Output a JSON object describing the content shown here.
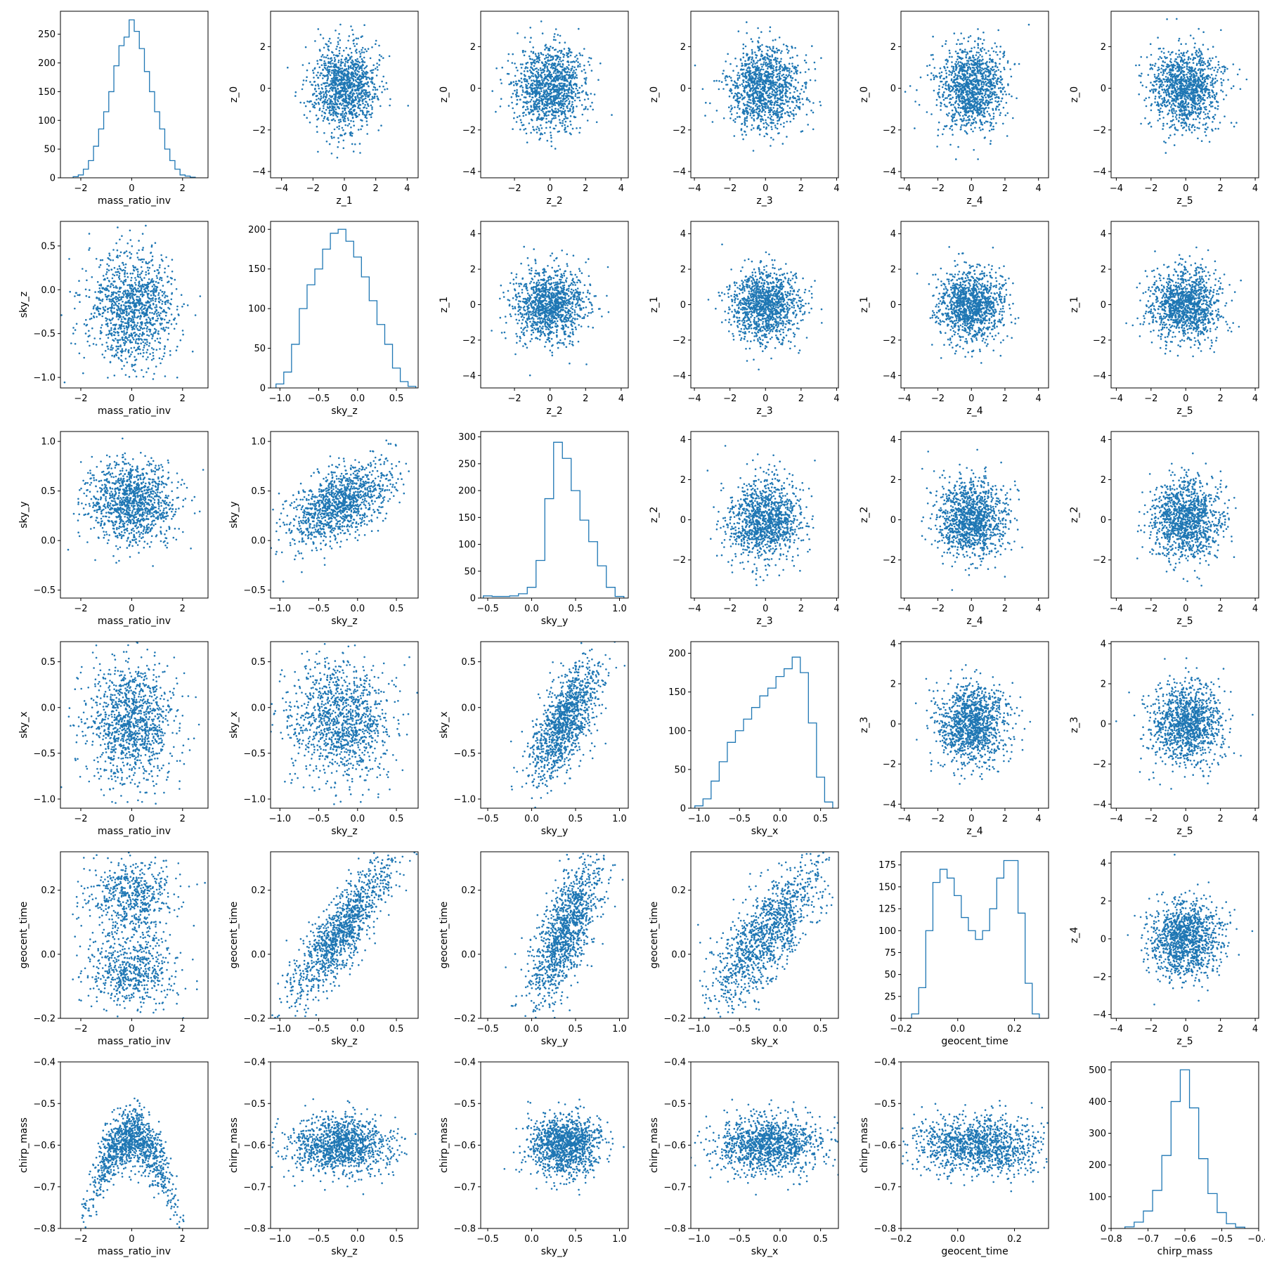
{
  "chart_data": {
    "type": "scatter",
    "marker_color": "#1f77b4",
    "histogram_color": "#1f77b4",
    "grid": false,
    "variables": [
      {
        "name": "mass_ratio_inv",
        "range": [
          -2.8,
          3.0
        ],
        "ticks": [
          -2,
          0,
          2
        ],
        "tick_labels": [
          "−2",
          "0",
          "2"
        ]
      },
      {
        "name": "sky_z",
        "range": [
          -1.12,
          0.78
        ],
        "ticks": [
          -1.0,
          -0.5,
          0.0,
          0.5
        ],
        "tick_labels": [
          "−1.0",
          "−0.5",
          "0.0",
          "0.5"
        ],
        "mean": -0.22,
        "sd": 0.33
      },
      {
        "name": "sky_y",
        "range": [
          -0.58,
          1.1
        ],
        "ticks": [
          -0.5,
          0.0,
          0.5,
          1.0
        ],
        "tick_labels": [
          "−0.5",
          "0.0",
          "0.5",
          "1.0"
        ],
        "mean": 0.38,
        "sd": 0.2
      },
      {
        "name": "sky_x",
        "range": [
          -1.1,
          0.72
        ],
        "ticks": [
          -1.0,
          -0.5,
          0.0,
          0.5
        ],
        "tick_labels": [
          "−1.0",
          "−0.5",
          "0.0",
          "0.5"
        ],
        "mean": -0.15,
        "sd": 0.33
      },
      {
        "name": "geocent_time",
        "range": [
          -0.2,
          0.32
        ],
        "ticks": [
          -0.2,
          0.0,
          0.2
        ],
        "tick_labels": [
          "−0.2",
          "0.0",
          "0.2"
        ],
        "mean": 0.07,
        "sd": 0.11
      },
      {
        "name": "chirp_mass",
        "range": [
          -0.8,
          -0.4
        ],
        "ticks": [
          -0.8,
          -0.7,
          -0.6,
          -0.5,
          -0.4
        ],
        "tick_labels": [
          "−0.8",
          "−0.7",
          "−0.6",
          "−0.5",
          "−0.4"
        ],
        "mean": -0.6,
        "sd": 0.035
      },
      {
        "name": "z_0",
        "range": [
          -4.3,
          3.7
        ],
        "ticks": [
          -4,
          -2,
          0,
          2
        ],
        "tick_labels": [
          "−4",
          "−2",
          "0",
          "2"
        ]
      },
      {
        "name": "z_1",
        "range": [
          -4.7,
          4.7
        ],
        "ticks": [
          -4,
          -2,
          0,
          2,
          4
        ],
        "tick_labels": [
          "−4",
          "−2",
          "0",
          "2",
          "4"
        ]
      },
      {
        "name": "z_2",
        "range": [
          -3.9,
          4.4
        ],
        "ticks": [
          -2,
          0,
          2,
          4
        ],
        "tick_labels": [
          "−2",
          "0",
          "2",
          "4"
        ]
      },
      {
        "name": "z_3",
        "range": [
          -4.2,
          4.1
        ],
        "ticks": [
          -4,
          -2,
          0,
          2,
          4
        ],
        "tick_labels": [
          "−4",
          "−2",
          "0",
          "2",
          "4"
        ]
      },
      {
        "name": "z_4",
        "range": [
          -4.2,
          4.6
        ],
        "ticks": [
          -4,
          -2,
          0,
          2,
          4
        ],
        "tick_labels": [
          "−4",
          "−2",
          "0",
          "2",
          "4"
        ]
      },
      {
        "name": "z_5",
        "range": [
          -4.3,
          4.2
        ],
        "ticks": [
          -4,
          -2,
          0,
          2,
          4
        ],
        "tick_labels": [
          "−4",
          "−2",
          "0",
          "2",
          "4"
        ]
      }
    ],
    "panels": [
      {
        "row": 0,
        "col": 0,
        "type": "histogram",
        "x": "mass_ratio_inv",
        "x_values": [
          -2.2,
          -2.0,
          -1.8,
          -1.6,
          -1.4,
          -1.2,
          -1.0,
          -0.8,
          -0.6,
          -0.4,
          -0.2,
          0.0,
          0.2,
          0.4,
          0.6,
          0.8,
          1.0,
          1.2,
          1.4,
          1.6,
          1.8,
          2.0,
          2.2,
          2.4
        ],
        "counts": [
          2,
          5,
          15,
          30,
          55,
          85,
          115,
          150,
          195,
          230,
          245,
          275,
          255,
          225,
          185,
          150,
          115,
          85,
          50,
          30,
          15,
          5,
          3,
          1
        ],
        "ylim": [
          0,
          290
        ],
        "yticks": [
          0,
          50,
          100,
          150,
          200,
          250
        ],
        "ytick_labels": [
          "0",
          "50",
          "100",
          "150",
          "200",
          "250"
        ]
      },
      {
        "row": 0,
        "col": 1,
        "type": "scatter",
        "x": "z_1",
        "y": "z_0"
      },
      {
        "row": 0,
        "col": 2,
        "type": "scatter",
        "x": "z_2",
        "y": "z_0"
      },
      {
        "row": 0,
        "col": 3,
        "type": "scatter",
        "x": "z_3",
        "y": "z_0"
      },
      {
        "row": 0,
        "col": 4,
        "type": "scatter",
        "x": "z_4",
        "y": "z_0"
      },
      {
        "row": 0,
        "col": 5,
        "type": "scatter",
        "x": "z_5",
        "y": "z_0"
      },
      {
        "row": 1,
        "col": 0,
        "type": "scatter",
        "x": "mass_ratio_inv",
        "y": "sky_z"
      },
      {
        "row": 1,
        "col": 1,
        "type": "histogram",
        "x": "sky_z",
        "x_values": [
          -1.0,
          -0.9,
          -0.8,
          -0.7,
          -0.6,
          -0.5,
          -0.4,
          -0.3,
          -0.2,
          -0.1,
          0.0,
          0.1,
          0.2,
          0.3,
          0.4,
          0.5,
          0.6,
          0.7
        ],
        "counts": [
          5,
          20,
          55,
          100,
          130,
          150,
          175,
          195,
          200,
          185,
          165,
          140,
          110,
          80,
          55,
          25,
          8,
          2
        ],
        "ylim": [
          0,
          210
        ],
        "yticks": [
          0,
          50,
          100,
          150,
          200
        ],
        "ytick_labels": [
          "0",
          "50",
          "100",
          "150",
          "200"
        ]
      },
      {
        "row": 1,
        "col": 2,
        "type": "scatter",
        "x": "z_2",
        "y": "z_1"
      },
      {
        "row": 1,
        "col": 3,
        "type": "scatter",
        "x": "z_3",
        "y": "z_1"
      },
      {
        "row": 1,
        "col": 4,
        "type": "scatter",
        "x": "z_4",
        "y": "z_1"
      },
      {
        "row": 1,
        "col": 5,
        "type": "scatter",
        "x": "z_5",
        "y": "z_1"
      },
      {
        "row": 2,
        "col": 0,
        "type": "scatter",
        "x": "mass_ratio_inv",
        "y": "sky_y"
      },
      {
        "row": 2,
        "col": 1,
        "type": "scatter",
        "x": "sky_z",
        "y": "sky_y"
      },
      {
        "row": 2,
        "col": 2,
        "type": "histogram",
        "x": "sky_y",
        "x_values": [
          -0.5,
          -0.4,
          -0.3,
          -0.2,
          -0.1,
          0.0,
          0.1,
          0.2,
          0.3,
          0.4,
          0.5,
          0.6,
          0.7,
          0.8,
          0.9,
          1.0
        ],
        "counts": [
          4,
          3,
          3,
          4,
          8,
          20,
          70,
          185,
          290,
          260,
          200,
          145,
          105,
          60,
          20,
          3
        ],
        "ylim": [
          0,
          310
        ],
        "yticks": [
          0,
          50,
          100,
          150,
          200,
          250,
          300
        ],
        "ytick_labels": [
          "0",
          "50",
          "100",
          "150",
          "200",
          "250",
          "300"
        ]
      },
      {
        "row": 2,
        "col": 3,
        "type": "scatter",
        "x": "z_3",
        "y": "z_2"
      },
      {
        "row": 2,
        "col": 4,
        "type": "scatter",
        "x": "z_4",
        "y": "z_2"
      },
      {
        "row": 2,
        "col": 5,
        "type": "scatter",
        "x": "z_5",
        "y": "z_2"
      },
      {
        "row": 3,
        "col": 0,
        "type": "scatter",
        "x": "mass_ratio_inv",
        "y": "sky_x"
      },
      {
        "row": 3,
        "col": 1,
        "type": "scatter",
        "x": "sky_z",
        "y": "sky_x"
      },
      {
        "row": 3,
        "col": 2,
        "type": "scatter",
        "x": "sky_y",
        "y": "sky_x"
      },
      {
        "row": 3,
        "col": 3,
        "type": "histogram",
        "x": "sky_x",
        "x_values": [
          -1.0,
          -0.9,
          -0.8,
          -0.7,
          -0.6,
          -0.5,
          -0.4,
          -0.3,
          -0.2,
          -0.1,
          0.0,
          0.1,
          0.2,
          0.3,
          0.4,
          0.5,
          0.6
        ],
        "counts": [
          3,
          12,
          35,
          60,
          85,
          100,
          115,
          130,
          145,
          155,
          170,
          180,
          195,
          175,
          110,
          40,
          8
        ],
        "ylim": [
          0,
          215
        ],
        "yticks": [
          0,
          50,
          100,
          150,
          200
        ],
        "ytick_labels": [
          "0",
          "50",
          "100",
          "150",
          "200"
        ]
      },
      {
        "row": 3,
        "col": 4,
        "type": "scatter",
        "x": "z_4",
        "y": "z_3"
      },
      {
        "row": 3,
        "col": 5,
        "type": "scatter",
        "x": "z_5",
        "y": "z_3"
      },
      {
        "row": 4,
        "col": 0,
        "type": "scatter",
        "x": "mass_ratio_inv",
        "y": "geocent_time"
      },
      {
        "row": 4,
        "col": 1,
        "type": "scatter",
        "x": "sky_z",
        "y": "geocent_time"
      },
      {
        "row": 4,
        "col": 2,
        "type": "scatter",
        "x": "sky_y",
        "y": "geocent_time"
      },
      {
        "row": 4,
        "col": 3,
        "type": "scatter",
        "x": "sky_x",
        "y": "geocent_time"
      },
      {
        "row": 4,
        "col": 4,
        "type": "histogram",
        "x": "geocent_time",
        "x_values": [
          -0.15,
          -0.125,
          -0.1,
          -0.075,
          -0.05,
          -0.025,
          0.0,
          0.025,
          0.05,
          0.075,
          0.1,
          0.125,
          0.15,
          0.175,
          0.2,
          0.225,
          0.25,
          0.275
        ],
        "counts": [
          5,
          35,
          100,
          155,
          170,
          160,
          140,
          115,
          100,
          90,
          100,
          125,
          160,
          180,
          180,
          120,
          40,
          5
        ],
        "ylim": [
          0,
          190
        ],
        "yticks": [
          0,
          25,
          50,
          75,
          100,
          125,
          150,
          175
        ],
        "ytick_labels": [
          "0",
          "25",
          "50",
          "75",
          "100",
          "125",
          "150",
          "175"
        ]
      },
      {
        "row": 4,
        "col": 5,
        "type": "scatter",
        "x": "z_5",
        "y": "z_4"
      },
      {
        "row": 5,
        "col": 0,
        "type": "scatter",
        "x": "mass_ratio_inv",
        "y": "chirp_mass"
      },
      {
        "row": 5,
        "col": 1,
        "type": "scatter",
        "x": "sky_z",
        "y": "chirp_mass"
      },
      {
        "row": 5,
        "col": 2,
        "type": "scatter",
        "x": "sky_y",
        "y": "chirp_mass"
      },
      {
        "row": 5,
        "col": 3,
        "type": "scatter",
        "x": "sky_x",
        "y": "chirp_mass"
      },
      {
        "row": 5,
        "col": 4,
        "type": "scatter",
        "x": "geocent_time",
        "y": "chirp_mass"
      },
      {
        "row": 5,
        "col": 5,
        "type": "histogram",
        "x": "chirp_mass",
        "x_values": [
          -0.75,
          -0.725,
          -0.7,
          -0.675,
          -0.65,
          -0.625,
          -0.6,
          -0.575,
          -0.55,
          -0.525,
          -0.5,
          -0.475,
          -0.45
        ],
        "counts": [
          5,
          20,
          55,
          120,
          230,
          400,
          500,
          380,
          220,
          110,
          50,
          15,
          4
        ],
        "ylim": [
          0,
          525
        ],
        "yticks": [
          0,
          100,
          200,
          300,
          400,
          500
        ],
        "ytick_labels": [
          "0",
          "100",
          "200",
          "300",
          "400",
          "500"
        ]
      }
    ]
  }
}
